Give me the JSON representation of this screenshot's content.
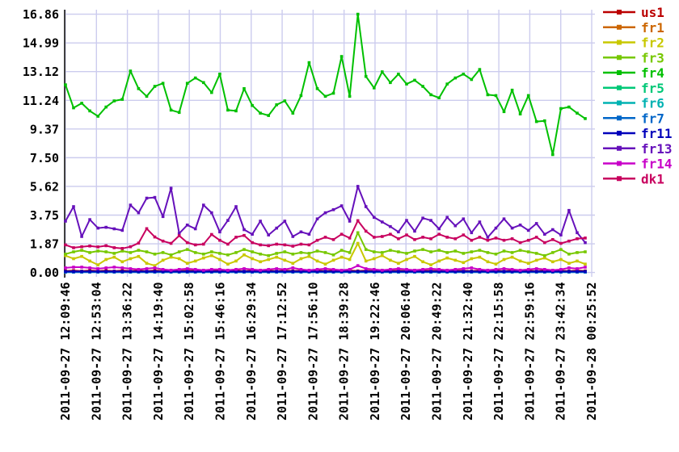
{
  "chart_data": {
    "type": "line",
    "title": "",
    "xlabel": "",
    "ylabel": "",
    "ylim": [
      0,
      16.86
    ],
    "grid": true,
    "legend_position": "right",
    "y_tick_labels": [
      "16.86",
      "14.99",
      "13.12",
      "11.24",
      "9.37",
      "7.50",
      "5.62",
      "3.75",
      "1.87",
      "0.00"
    ],
    "x_tick_labels": [
      "2011-09-27 12:09:46",
      "2011-09-27 12:53:04",
      "2011-09-27 13:36:22",
      "2011-09-27 14:19:40",
      "2011-09-27 15:02:58",
      "2011-09-27 15:46:16",
      "2011-09-27 16:29:34",
      "2011-09-27 17:12:52",
      "2011-09-27 17:56:10",
      "2011-09-27 18:39:28",
      "2011-09-27 19:22:46",
      "2011-09-27 20:06:04",
      "2011-09-27 20:49:22",
      "2011-09-27 21:32:40",
      "2011-09-27 22:15:58",
      "2011-09-27 22:59:16",
      "2011-09-27 23:42:34",
      "2011-09-28 00:25:52"
    ],
    "series": [
      {
        "name": "us1",
        "color": "#bb0000",
        "values": [
          0.1,
          0.12,
          0.09,
          0.13,
          0.1,
          0.12,
          0.09,
          0.13,
          0.1,
          0.12,
          0.09,
          0.13,
          0.1,
          0.12,
          0.09,
          0.13,
          0.1,
          0.12,
          0.09,
          0.13,
          0.1,
          0.12,
          0.09,
          0.13,
          0.1,
          0.12,
          0.09,
          0.13,
          0.1,
          0.12,
          0.09,
          0.13,
          0.1,
          0.12,
          0.09,
          0.13,
          0.1,
          0.12,
          0.09,
          0.13,
          0.1,
          0.12,
          0.09,
          0.13,
          0.1,
          0.12,
          0.09,
          0.13,
          0.1,
          0.12,
          0.09,
          0.13,
          0.1,
          0.12,
          0.09,
          0.13,
          0.1,
          0.12,
          0.09,
          0.13,
          0.1,
          0.12,
          0.09,
          0.13,
          0.1
        ]
      },
      {
        "name": "fr1",
        "color": "#cc6600",
        "values": [
          0.05,
          0.05,
          0.05,
          0.05,
          0.05,
          0.05,
          0.05,
          0.05,
          0.05,
          0.05,
          0.05,
          0.05,
          0.05,
          0.05,
          0.05,
          0.05,
          0.05,
          0.05,
          0.05,
          0.05,
          0.05,
          0.05,
          0.05,
          0.05,
          0.05,
          0.05,
          0.05,
          0.05,
          0.05,
          0.05,
          0.05,
          0.05,
          0.05,
          0.05,
          0.05,
          0.05,
          0.05,
          0.05,
          0.05,
          0.05,
          0.05,
          0.05,
          0.05,
          0.05,
          0.05,
          0.05,
          0.05,
          0.05,
          0.05,
          0.05,
          0.05,
          0.05,
          0.05,
          0.05,
          0.05,
          0.05,
          0.05,
          0.05,
          0.05,
          0.05,
          0.05,
          0.05,
          0.05,
          0.05,
          0.05
        ]
      },
      {
        "name": "fr2",
        "color": "#c8c800",
        "values": [
          1.1,
          0.9,
          1.05,
          0.75,
          0.5,
          0.85,
          1.0,
          0.7,
          0.9,
          1.05,
          0.6,
          0.45,
          0.8,
          1.0,
          0.9,
          0.6,
          0.75,
          0.95,
          1.1,
          0.85,
          0.55,
          0.75,
          1.15,
          0.9,
          0.7,
          0.85,
          1.0,
          0.8,
          0.6,
          0.9,
          1.05,
          0.75,
          0.55,
          0.8,
          1.0,
          0.85,
          1.9,
          0.75,
          0.9,
          1.1,
          0.8,
          0.6,
          0.85,
          1.05,
          0.7,
          0.5,
          0.75,
          0.95,
          0.8,
          0.65,
          0.9,
          1.0,
          0.7,
          0.55,
          0.85,
          1.0,
          0.75,
          0.6,
          0.8,
          0.95,
          0.7,
          0.85,
          0.6,
          0.75,
          0.55
        ]
      },
      {
        "name": "fr3",
        "color": "#77c800",
        "values": [
          1.2,
          1.35,
          1.45,
          1.3,
          1.4,
          1.35,
          1.25,
          1.4,
          1.3,
          1.45,
          1.35,
          1.2,
          1.3,
          1.15,
          1.35,
          1.5,
          1.3,
          1.2,
          1.35,
          1.25,
          1.15,
          1.3,
          1.5,
          1.35,
          1.2,
          1.1,
          1.25,
          1.35,
          1.2,
          1.3,
          1.25,
          1.4,
          1.3,
          1.15,
          1.45,
          1.3,
          2.6,
          1.5,
          1.35,
          1.3,
          1.45,
          1.35,
          1.25,
          1.4,
          1.5,
          1.35,
          1.45,
          1.3,
          1.4,
          1.25,
          1.35,
          1.45,
          1.3,
          1.2,
          1.4,
          1.3,
          1.45,
          1.35,
          1.25,
          1.1,
          1.3,
          1.5,
          1.2,
          1.3,
          1.35
        ]
      },
      {
        "name": "fr4",
        "color": "#00c000",
        "values": [
          12.25,
          10.75,
          11.05,
          10.55,
          10.2,
          10.8,
          11.2,
          11.3,
          13.15,
          12.0,
          11.5,
          12.15,
          12.35,
          10.6,
          10.45,
          12.35,
          12.7,
          12.4,
          11.75,
          12.95,
          10.6,
          10.55,
          12.0,
          10.9,
          10.4,
          10.25,
          10.95,
          11.2,
          10.4,
          11.55,
          13.7,
          12.0,
          11.5,
          11.7,
          14.1,
          11.5,
          16.86,
          12.8,
          12.05,
          13.1,
          12.4,
          12.95,
          12.3,
          12.55,
          12.15,
          11.6,
          11.4,
          12.3,
          12.7,
          12.95,
          12.6,
          13.25,
          11.6,
          11.55,
          10.5,
          11.9,
          10.35,
          11.55,
          9.85,
          9.9,
          7.7,
          10.7,
          10.8,
          10.4,
          10.05
        ]
      },
      {
        "name": "fr5",
        "color": "#00c877",
        "values": [
          0.04,
          0.04,
          0.04,
          0.04,
          0.04,
          0.04,
          0.04,
          0.04,
          0.04,
          0.04,
          0.04,
          0.04,
          0.04,
          0.04,
          0.04,
          0.04,
          0.04,
          0.04,
          0.04,
          0.04,
          0.04,
          0.04,
          0.04,
          0.04,
          0.04,
          0.04,
          0.04,
          0.04,
          0.04,
          0.04,
          0.04,
          0.04,
          0.04,
          0.04,
          0.04,
          0.04,
          0.04,
          0.04,
          0.04,
          0.04,
          0.04,
          0.04,
          0.04,
          0.04,
          0.04,
          0.04,
          0.04,
          0.04,
          0.04,
          0.04,
          0.04,
          0.04,
          0.04,
          0.04,
          0.04,
          0.04,
          0.04,
          0.04,
          0.04,
          0.04,
          0.04,
          0.04,
          0.04,
          0.04,
          0.04
        ]
      },
      {
        "name": "fr6",
        "color": "#00b2b2",
        "values": [
          0.03,
          0.03,
          0.03,
          0.03,
          0.03,
          0.03,
          0.03,
          0.03,
          0.03,
          0.03,
          0.03,
          0.03,
          0.03,
          0.03,
          0.03,
          0.03,
          0.03,
          0.03,
          0.03,
          0.03,
          0.03,
          0.03,
          0.03,
          0.03,
          0.03,
          0.03,
          0.03,
          0.03,
          0.03,
          0.03,
          0.03,
          0.03,
          0.03,
          0.03,
          0.03,
          0.03,
          0.03,
          0.03,
          0.03,
          0.03,
          0.03,
          0.03,
          0.03,
          0.03,
          0.03,
          0.03,
          0.03,
          0.03,
          0.03,
          0.03,
          0.03,
          0.03,
          0.03,
          0.03,
          0.03,
          0.03,
          0.03,
          0.03,
          0.03,
          0.03,
          0.03,
          0.03,
          0.03,
          0.03,
          0.03
        ]
      },
      {
        "name": "fr7",
        "color": "#0066c8",
        "values": [
          0.02,
          0.02,
          0.02,
          0.02,
          0.02,
          0.02,
          0.02,
          0.02,
          0.02,
          0.02,
          0.02,
          0.02,
          0.02,
          0.02,
          0.02,
          0.02,
          0.02,
          0.02,
          0.02,
          0.02,
          0.02,
          0.02,
          0.02,
          0.02,
          0.02,
          0.02,
          0.02,
          0.02,
          0.02,
          0.02,
          0.02,
          0.02,
          0.02,
          0.02,
          0.02,
          0.02,
          0.02,
          0.02,
          0.02,
          0.02,
          0.02,
          0.02,
          0.02,
          0.02,
          0.02,
          0.02,
          0.02,
          0.02,
          0.02,
          0.02,
          0.02,
          0.02,
          0.02,
          0.02,
          0.02,
          0.02,
          0.02,
          0.02,
          0.02,
          0.02,
          0.02,
          0.02,
          0.02,
          0.02,
          0.02
        ]
      },
      {
        "name": "fr11",
        "color": "#0000bb",
        "values": [
          0.07,
          0.07,
          0.07,
          0.07,
          0.07,
          0.07,
          0.07,
          0.07,
          0.07,
          0.07,
          0.07,
          0.07,
          0.07,
          0.07,
          0.07,
          0.07,
          0.07,
          0.07,
          0.07,
          0.07,
          0.07,
          0.07,
          0.07,
          0.07,
          0.07,
          0.07,
          0.07,
          0.07,
          0.07,
          0.07,
          0.07,
          0.07,
          0.07,
          0.07,
          0.07,
          0.07,
          0.07,
          0.07,
          0.07,
          0.07,
          0.07,
          0.07,
          0.07,
          0.07,
          0.07,
          0.07,
          0.07,
          0.07,
          0.07,
          0.07,
          0.07,
          0.07,
          0.07,
          0.07,
          0.07,
          0.07,
          0.07,
          0.07,
          0.07,
          0.07,
          0.07,
          0.07,
          0.07,
          0.07,
          0.07
        ]
      },
      {
        "name": "fr13",
        "color": "#6611bb",
        "values": [
          3.35,
          4.3,
          2.35,
          3.45,
          2.9,
          2.95,
          2.85,
          2.75,
          4.4,
          3.9,
          4.85,
          4.9,
          3.65,
          5.5,
          2.55,
          3.1,
          2.85,
          4.4,
          3.9,
          2.65,
          3.4,
          4.3,
          2.8,
          2.5,
          3.35,
          2.45,
          2.9,
          3.35,
          2.35,
          2.65,
          2.5,
          3.5,
          3.9,
          4.1,
          4.35,
          3.35,
          5.62,
          4.3,
          3.6,
          3.3,
          3.0,
          2.65,
          3.4,
          2.7,
          3.55,
          3.4,
          2.85,
          3.6,
          3.05,
          3.5,
          2.6,
          3.3,
          2.3,
          2.9,
          3.5,
          2.9,
          3.1,
          2.75,
          3.2,
          2.5,
          2.8,
          2.45,
          4.05,
          2.6,
          1.95
        ]
      },
      {
        "name": "fr14",
        "color": "#c800c8",
        "values": [
          0.3,
          0.35,
          0.35,
          0.3,
          0.25,
          0.3,
          0.35,
          0.3,
          0.25,
          0.2,
          0.25,
          0.3,
          0.2,
          0.15,
          0.2,
          0.25,
          0.2,
          0.15,
          0.2,
          0.2,
          0.15,
          0.2,
          0.25,
          0.2,
          0.15,
          0.2,
          0.25,
          0.2,
          0.3,
          0.2,
          0.15,
          0.2,
          0.25,
          0.2,
          0.15,
          0.2,
          0.45,
          0.25,
          0.2,
          0.15,
          0.2,
          0.25,
          0.2,
          0.15,
          0.2,
          0.25,
          0.2,
          0.15,
          0.2,
          0.25,
          0.3,
          0.2,
          0.15,
          0.2,
          0.25,
          0.2,
          0.15,
          0.2,
          0.25,
          0.2,
          0.15,
          0.2,
          0.3,
          0.25,
          0.35
        ]
      },
      {
        "name": "dk1",
        "color": "#c8005f",
        "values": [
          1.8,
          1.62,
          1.68,
          1.73,
          1.67,
          1.75,
          1.62,
          1.57,
          1.68,
          1.92,
          2.86,
          2.32,
          2.05,
          1.9,
          2.4,
          1.95,
          1.8,
          1.85,
          2.48,
          2.1,
          1.85,
          2.3,
          2.42,
          1.95,
          1.8,
          1.75,
          1.85,
          1.8,
          1.72,
          1.85,
          1.8,
          2.1,
          2.3,
          2.15,
          2.5,
          2.25,
          3.38,
          2.7,
          2.3,
          2.35,
          2.5,
          2.2,
          2.45,
          2.15,
          2.3,
          2.2,
          2.5,
          2.3,
          2.2,
          2.45,
          2.1,
          2.3,
          2.1,
          2.25,
          2.1,
          2.2,
          1.95,
          2.1,
          2.3,
          1.95,
          2.15,
          1.9,
          2.05,
          2.2,
          2.25
        ]
      }
    ]
  },
  "colors": {
    "background": "#ffffff",
    "grid": "#ccccee",
    "axis": "#404040",
    "tick_text": "#000000"
  }
}
